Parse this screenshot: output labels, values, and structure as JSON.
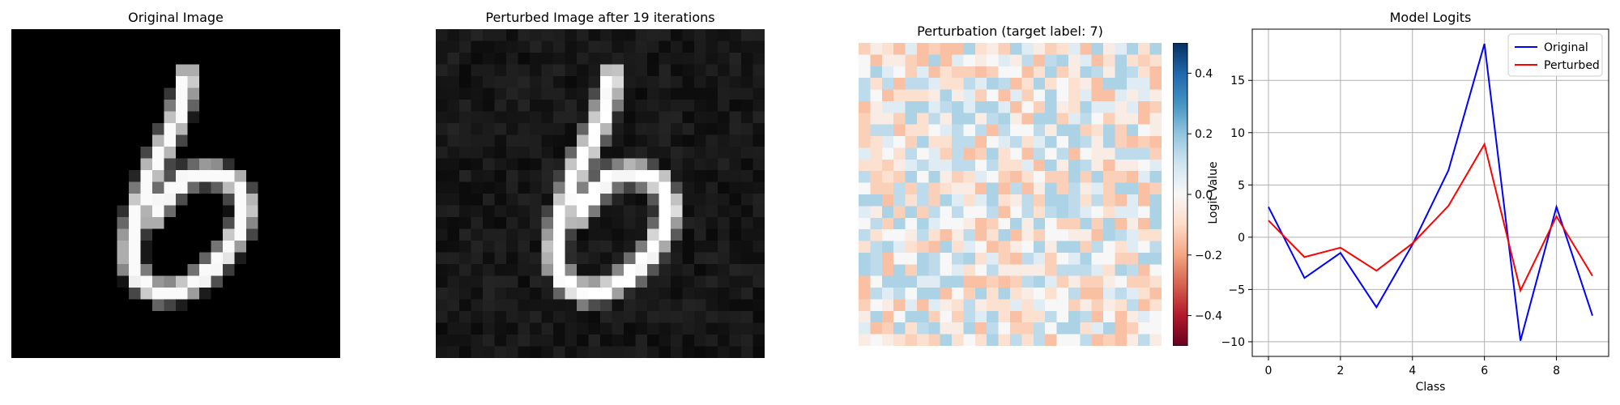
{
  "panels": {
    "original": {
      "title": "Original Image"
    },
    "perturbed": {
      "title": "Perturbed Image after 19 iterations"
    },
    "perturbation": {
      "title": "Perturbation (target label: 7)"
    },
    "logits": {
      "title": "Model Logits"
    }
  },
  "chart_data": [
    {
      "type": "heatmap",
      "title": "Original Image",
      "description_colormap": "gray",
      "grid": false
    },
    {
      "type": "heatmap",
      "title": "Perturbed Image after 19 iterations",
      "description_colormap": "gray",
      "grid": false
    },
    {
      "type": "heatmap",
      "title": "Perturbation (target label: 7)",
      "colormap": "RdBu",
      "colorbar": {
        "vmin": -0.5,
        "vmax": 0.5,
        "ticks": [
          -0.4,
          -0.2,
          0.0,
          0.2,
          0.4
        ],
        "tick_labels": [
          "−0.4",
          "−0.2",
          "0.0",
          "0.2",
          "0.4"
        ]
      },
      "grid": false
    },
    {
      "type": "line",
      "title": "Model Logits",
      "xlabel": "Class",
      "ylabel": "Logit Value",
      "x": [
        0,
        1,
        2,
        3,
        4,
        5,
        6,
        7,
        8,
        9
      ],
      "xlim": [
        -0.45,
        9.45
      ],
      "ylim": [
        -11.4,
        19.9
      ],
      "xticks": [
        0,
        2,
        4,
        6,
        8
      ],
      "yticks": [
        -10,
        -5,
        0,
        5,
        10,
        15
      ],
      "ytick_labels": [
        "−10",
        "−5",
        "0",
        "5",
        "10",
        "15"
      ],
      "grid": true,
      "legend": "top-right",
      "series": [
        {
          "name": "Original",
          "color": "#0000ff",
          "values": [
            2.9,
            -3.9,
            -1.5,
            -6.7,
            -0.7,
            6.4,
            18.5,
            -9.9,
            2.9,
            -7.5
          ]
        },
        {
          "name": "Perturbed",
          "color": "#ff0000",
          "values": [
            1.6,
            -1.9,
            -1.0,
            -3.2,
            -0.6,
            3.0,
            8.9,
            -5.1,
            2.0,
            -3.7
          ]
        }
      ]
    }
  ]
}
